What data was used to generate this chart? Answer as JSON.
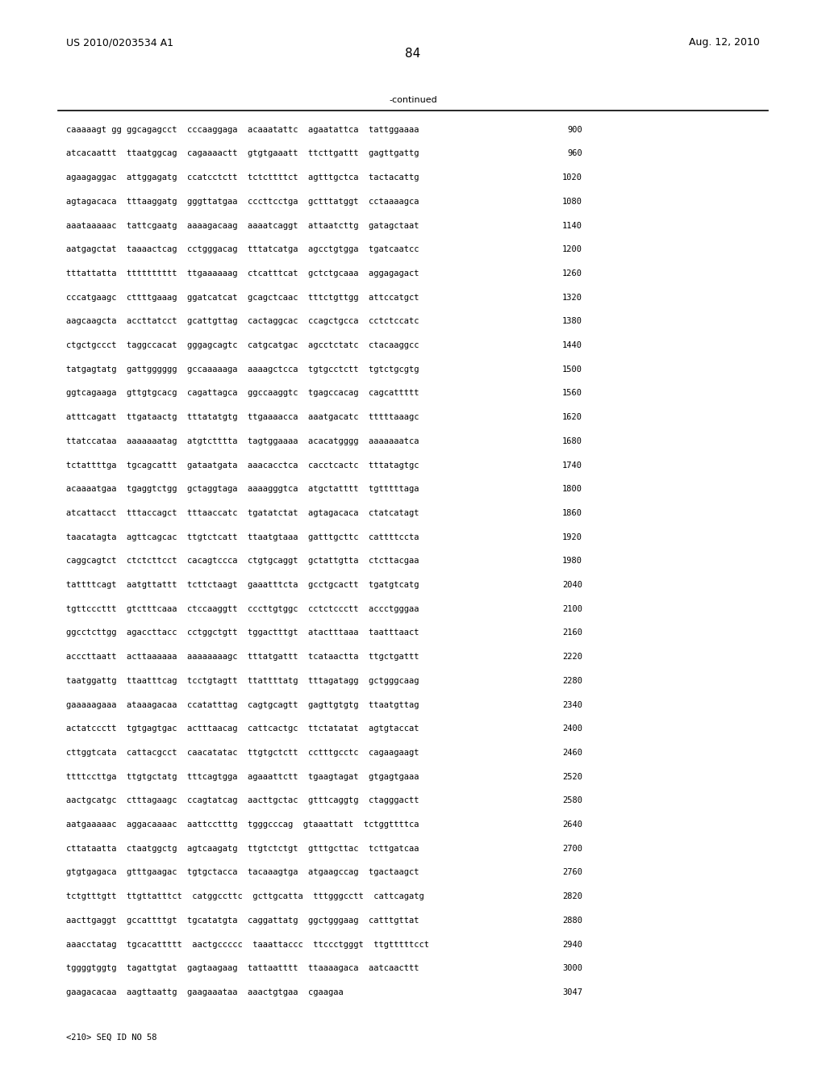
{
  "header_left": "US 2010/0203534 A1",
  "header_right": "Aug. 12, 2010",
  "page_number": "84",
  "continued_label": "-continued",
  "sequence_lines": [
    [
      "caaaaagt gg ggcagagcct  cccaaggaga  acaaatattc  agaatattca  tattggaaaa",
      "900"
    ],
    [
      "atcacaattt  ttaatggcag  cagaaaactt  gtgtgaaatt  ttcttgattt  gagttgattg",
      "960"
    ],
    [
      "agaagaggac  attggagatg  ccatcctctt  tctcttttct  agtttgctca  tactacattg",
      "1020"
    ],
    [
      "agtagacaca  tttaaggatg  gggttatgaa  cccttcctga  gctttatggt  cctaaaagca",
      "1080"
    ],
    [
      "aaataaaaac  tattcgaatg  aaaagacaag  aaaatcaggt  attaatcttg  gatagctaat",
      "1140"
    ],
    [
      "aatgagctat  taaaactcag  cctgggacag  tttatcatga  agcctgtgga  tgatcaatcc",
      "1200"
    ],
    [
      "tttattatta  tttttttttt  ttgaaaaaag  ctcatttcat  gctctgcaaa  aggagagact",
      "1260"
    ],
    [
      "cccatgaagc  cttttgaaag  ggatcatcat  gcagctcaac  tttctgttgg  attccatgct",
      "1320"
    ],
    [
      "aagcaagcta  accttatcct  gcattgttag  cactaggcac  ccagctgcca  cctctccatc",
      "1380"
    ],
    [
      "ctgctgccct  taggccacat  gggagcagtc  catgcatgac  agcctctatc  ctacaaggcc",
      "1440"
    ],
    [
      "tatgagtatg  gattgggggg  gccaaaaaga  aaaagctcca  tgtgcctctt  tgtctgcgtg",
      "1500"
    ],
    [
      "ggtcagaaga  gttgtgcacg  cagattagca  ggccaaggtc  tgagccacag  cagcattttt",
      "1560"
    ],
    [
      "atttcagatt  ttgataactg  tttatatgtg  ttgaaaacca  aaatgacatc  tttttaaagc",
      "1620"
    ],
    [
      "ttatccataa  aaaaaaatag  atgtctttta  tagtggaaaa  acacatgggg  aaaaaaatca",
      "1680"
    ],
    [
      "tctattttga  tgcagcattt  gataatgata  aaacacctca  cacctcactc  tttatagtgc",
      "1740"
    ],
    [
      "acaaaatgaa  tgaggtctgg  gctaggtaga  aaaagggtca  atgctatttt  tgtttttaga",
      "1800"
    ],
    [
      "atcattacct  tttaccagct  tttaaccatc  tgatatctat  agtagacaca  ctatcatagt",
      "1860"
    ],
    [
      "taacatagta  agttcagcac  ttgtctcatt  ttaatgtaaa  gatttgcttc  cattttccta",
      "1920"
    ],
    [
      "caggcagtct  ctctcttcct  cacagtccca  ctgtgcaggt  gctattgtta  ctcttacgaa",
      "1980"
    ],
    [
      "tattttcagt  aatgttattt  tcttctaagt  gaaatttcta  gcctgcactt  tgatgtcatg",
      "2040"
    ],
    [
      "tgttcccttt  gtctttcaaa  ctccaaggtt  cccttgtggc  cctctccctt  accctgggaa",
      "2100"
    ],
    [
      "ggcctcttgg  agaccttacc  cctggctgtt  tggactttgt  atactttaaa  taatttaact",
      "2160"
    ],
    [
      "acccttaatt  acttaaaaaa  aaaaaaaagc  tttatgattt  tcataactta  ttgctgattt",
      "2220"
    ],
    [
      "taatggattg  ttaatttcag  tcctgtagtt  ttattttatg  tttagatagg  gctgggcaag",
      "2280"
    ],
    [
      "gaaaaagaaa  ataaagacaa  ccatatttag  cagtgcagtt  gagttgtgtg  ttaatgttag",
      "2340"
    ],
    [
      "actatccctt  tgtgagtgac  actttaacag  cattcactgc  ttctatatat  agtgtaccat",
      "2400"
    ],
    [
      "cttggtcata  cattacgcct  caacatatac  ttgtgctctt  cctttgcctc  cagaagaagt",
      "2460"
    ],
    [
      "ttttccttga  ttgtgctatg  tttcagtgga  agaaattctt  tgaagtagat  gtgagtgaaa",
      "2520"
    ],
    [
      "aactgcatgc  ctttagaagc  ccagtatcag  aacttgctac  gtttcaggtg  ctagggactt",
      "2580"
    ],
    [
      "aatgaaaaac  aggacaaaac  aattcctttg  tgggcccag  gtaaattatt  tctggttttca",
      "2640"
    ],
    [
      "cttataatta  ctaatggctg  agtcaagatg  ttgtctctgt  gtttgcttac  tcttgatcaa",
      "2700"
    ],
    [
      "gtgtgagaca  gtttgaagac  tgtgctacca  tacaaagtga  atgaagccag  tgactaagct",
      "2760"
    ],
    [
      "tctgtttgtt  ttgttatttct  catggccttc  gcttgcatta  tttgggcctt  cattcagatg",
      "2820"
    ],
    [
      "aacttgaggt  gccattttgt  tgcatatgta  caggattatg  ggctgggaag  catttgttat",
      "2880"
    ],
    [
      "aaacctatag  tgcacattttt  aactgccccc  taaattaccc  ttccctgggt  ttgtttttcct",
      "2940"
    ],
    [
      "tggggtggtg  tagattgtat  gagtaagaag  tattaatttt  ttaaaagaca  aatcaacttt",
      "3000"
    ],
    [
      "gaagacacaa  aagttaattg  gaagaaataa  aaactgtgaa  cgaagaa",
      "3047"
    ]
  ],
  "footer": "<210> SEQ ID NO 58",
  "bg_color": "#ffffff",
  "text_color": "#000000",
  "font_family": "monospace",
  "header_fontsize": 9,
  "body_fontsize": 7.5,
  "page_width": 10.24,
  "page_height": 13.2
}
